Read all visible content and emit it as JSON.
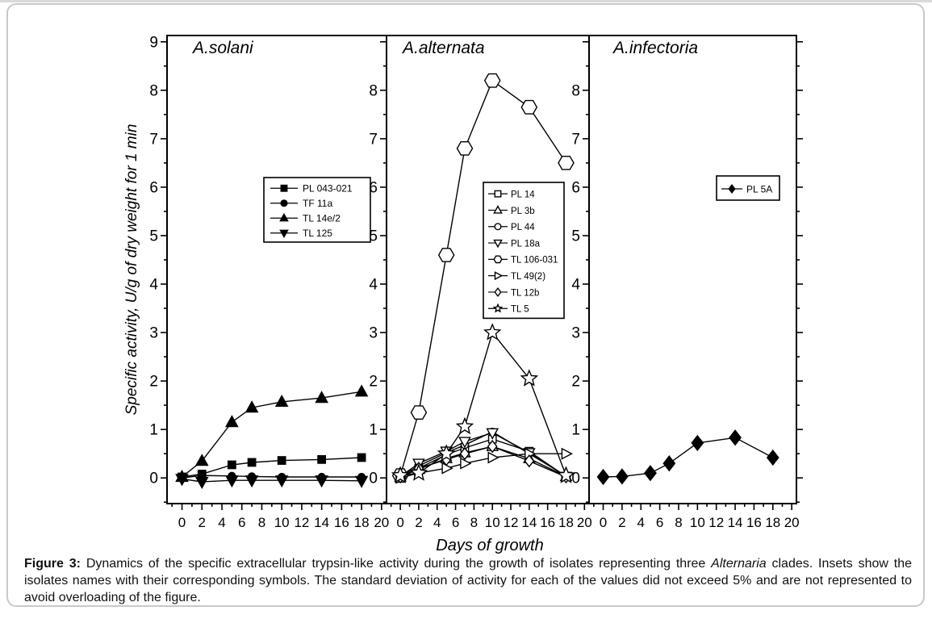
{
  "caption": {
    "label": "Figure 3:",
    "part1": " Dynamics of the specific extracellular trypsin-like activity during the growth of isolates representing three ",
    "italic": "Alternaria",
    "part2": " clades. Insets show the isolates names with their corresponding symbols. The standard deviation of activity for each of the values did not exceed 5% and are not represented to avoid overloading of the figure."
  },
  "chart_data": {
    "type": "line",
    "xlabel": "Days of growth",
    "ylabel": "Specific activity, U/g of dry weight for 1 min",
    "x": [
      0,
      2,
      5,
      7,
      10,
      14,
      18
    ],
    "x_ticks": [
      0,
      2,
      4,
      6,
      8,
      10,
      12,
      14,
      16,
      18,
      20
    ],
    "xlim": [
      -1.5,
      20.5
    ],
    "ylim": [
      -0.53,
      9.13
    ],
    "grid": false,
    "marker_color": "#000000",
    "line_color": "#000000",
    "panels": [
      {
        "title": "A.solani",
        "y_tick_labels": [
          0,
          1,
          2,
          3,
          4,
          5,
          6,
          7,
          8,
          9
        ],
        "legend_position": "upper-middle-inset",
        "series": [
          {
            "name": "PL 043-021",
            "marker": "square",
            "fill": "filled",
            "values": [
              0.02,
              0.08,
              0.27,
              0.32,
              0.36,
              0.38,
              0.42
            ]
          },
          {
            "name": "TF 11a",
            "marker": "circle",
            "fill": "filled",
            "values": [
              0.0,
              0.05,
              0.04,
              0.03,
              0.02,
              0.02,
              0.02
            ]
          },
          {
            "name": "TL 14e/2",
            "marker": "triangle-up",
            "fill": "filled",
            "values": [
              0.02,
              0.35,
              1.15,
              1.45,
              1.57,
              1.65,
              1.78
            ]
          },
          {
            "name": "TL 125",
            "marker": "triangle-down",
            "fill": "filled",
            "values": [
              -0.02,
              -0.08,
              -0.05,
              -0.05,
              -0.05,
              -0.05,
              -0.06
            ]
          }
        ]
      },
      {
        "title": "A.alternata",
        "y_tick_labels": [
          0,
          1,
          2,
          3,
          4,
          5,
          6,
          7,
          8
        ],
        "legend_position": "middle-inset",
        "series": [
          {
            "name": "PL 14",
            "marker": "square",
            "fill": "open",
            "values": [
              0.02,
              0.2,
              0.48,
              0.62,
              0.8,
              0.55,
              0.03
            ]
          },
          {
            "name": "PL 3b",
            "marker": "triangle-up",
            "fill": "open",
            "values": [
              0.02,
              0.18,
              0.4,
              0.52,
              0.65,
              0.4,
              0.03
            ]
          },
          {
            "name": "PL 44",
            "marker": "circle",
            "fill": "open",
            "values": [
              0.03,
              0.25,
              0.52,
              0.68,
              0.95,
              0.5,
              0.04
            ]
          },
          {
            "name": "PL 18a",
            "marker": "triangle-down",
            "fill": "open",
            "values": [
              0.03,
              0.3,
              0.55,
              0.75,
              0.93,
              0.52,
              0.03
            ]
          },
          {
            "name": "TL 106-031",
            "marker": "hexagon",
            "fill": "open",
            "values": [
              0.05,
              1.35,
              4.6,
              6.8,
              8.2,
              7.65,
              6.5
            ]
          },
          {
            "name": "TL 49(2)",
            "marker": "triangle-right",
            "fill": "open",
            "values": [
              0.0,
              0.1,
              0.2,
              0.3,
              0.42,
              0.5,
              0.5
            ]
          },
          {
            "name": "TL 12b",
            "marker": "diamond",
            "fill": "open",
            "values": [
              0.02,
              0.2,
              0.38,
              0.5,
              0.65,
              0.35,
              0.02
            ]
          },
          {
            "name": "TL 5",
            "marker": "star",
            "fill": "open",
            "values": [
              0.05,
              0.1,
              0.5,
              1.06,
              3.0,
              2.05,
              0.05
            ]
          }
        ]
      },
      {
        "title": "A.infectoria",
        "y_tick_labels": [
          0,
          1,
          2,
          3,
          4,
          5,
          6,
          7,
          8
        ],
        "legend_position": "upper-middle-inset",
        "series": [
          {
            "name": "PL 5A",
            "marker": "diamond",
            "fill": "filled",
            "values": [
              0.02,
              0.03,
              0.1,
              0.3,
              0.72,
              0.83,
              0.42
            ]
          }
        ]
      }
    ]
  }
}
